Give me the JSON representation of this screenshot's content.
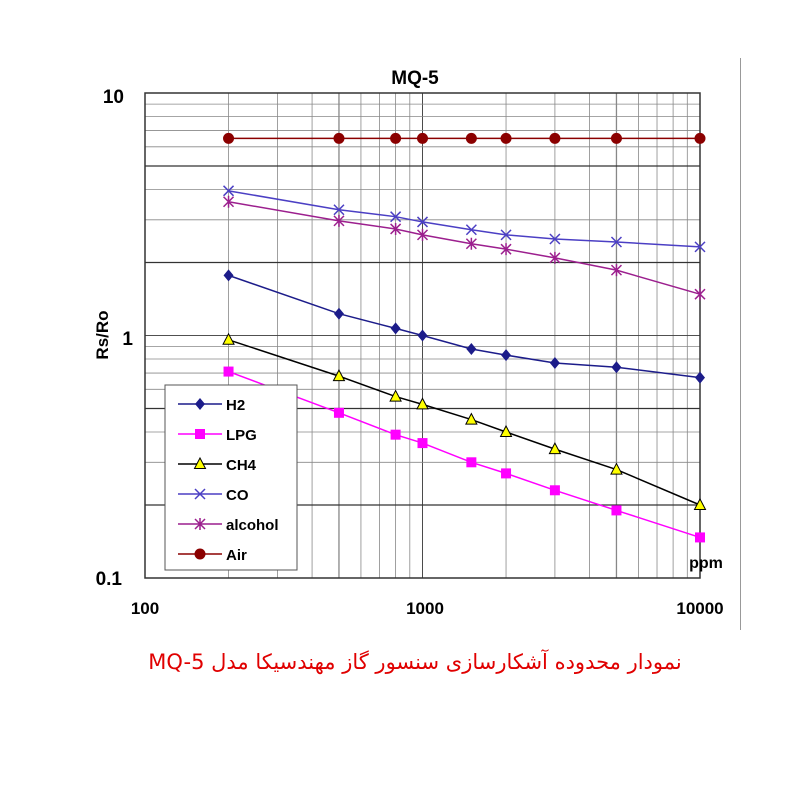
{
  "chart_data": {
    "type": "line",
    "title": "MQ-5",
    "xlabel": "ppm",
    "ylabel": "Rs/Ro",
    "x_scale": "log",
    "y_scale": "log",
    "xlim": [
      100,
      10000
    ],
    "ylim": [
      0.1,
      10
    ],
    "x_ticks": [
      "100",
      "1000",
      "10000"
    ],
    "y_ticks": [
      "0.1",
      "1",
      "10"
    ],
    "grid": true,
    "legend_position": "bottom-left",
    "x": [
      200,
      500,
      800,
      1000,
      1500,
      2000,
      3000,
      5000,
      10000
    ],
    "series": [
      {
        "name": "H2",
        "color": "#1c1c8a",
        "marker": "diamond",
        "values": [
          1.77,
          1.23,
          1.07,
          1.0,
          0.88,
          0.83,
          0.77,
          0.74,
          0.67
        ]
      },
      {
        "name": "LPG",
        "color": "#ff00ff",
        "marker": "square",
        "values": [
          0.71,
          0.48,
          0.39,
          0.36,
          0.3,
          0.27,
          0.23,
          0.19,
          0.147
        ]
      },
      {
        "name": "CH4",
        "color": "#000000",
        "marker": "triangle",
        "values": [
          0.96,
          0.68,
          0.56,
          0.52,
          0.45,
          0.4,
          0.34,
          0.28,
          0.2
        ]
      },
      {
        "name": "CO",
        "color": "#4b3fc4",
        "marker": "x",
        "values": [
          3.95,
          3.3,
          3.09,
          2.94,
          2.73,
          2.6,
          2.5,
          2.43,
          2.32
        ]
      },
      {
        "name": "alcohol",
        "color": "#9c1f8e",
        "marker": "asterisk",
        "values": [
          3.56,
          2.97,
          2.75,
          2.6,
          2.39,
          2.27,
          2.09,
          1.86,
          1.48
        ]
      },
      {
        "name": "Air",
        "color": "#8b0000",
        "marker": "circle",
        "values": [
          6.5,
          6.5,
          6.5,
          6.5,
          6.5,
          6.5,
          6.5,
          6.5,
          6.5
        ]
      }
    ]
  },
  "caption": "نمودار محدوده آشکارسازی سنسور گاز مهندسیکا مدل MQ-5"
}
